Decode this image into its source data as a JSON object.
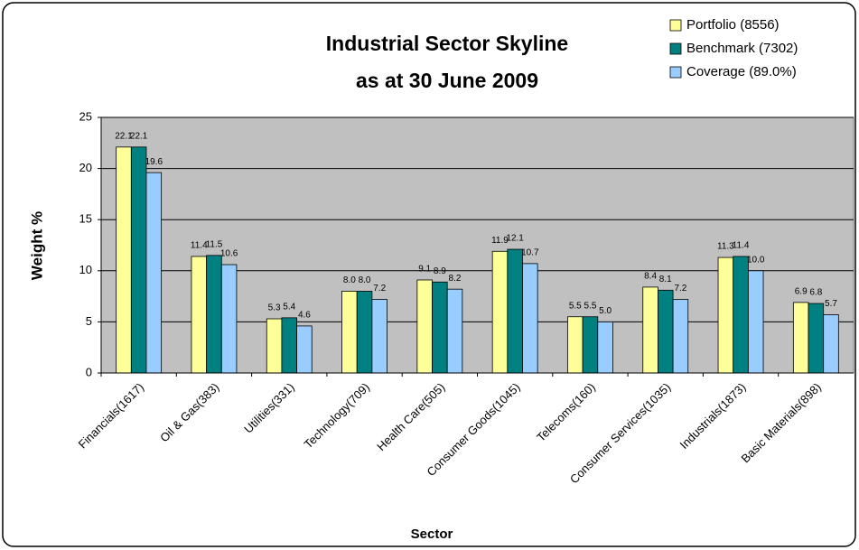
{
  "chart_data": {
    "type": "bar",
    "title": "Industrial Sector Skyline",
    "subtitle": "as at 30 June 2009",
    "x_label": "Sector",
    "y_label": "Weight %",
    "categories": [
      "Financials(1617)",
      "Oil & Gas(383)",
      "Utilities(331)",
      "Technology(709)",
      "Health Care(505)",
      "Consumer Goods(1045)",
      "Telecoms(160)",
      "Consumer Services(1035)",
      "Industrials(1873)",
      "Basic Materials(898)"
    ],
    "series": [
      {
        "name": "Portfolio (8556)",
        "color": "#ffff99",
        "values": [
          22.1,
          11.4,
          5.3,
          8.0,
          9.1,
          11.9,
          5.5,
          8.4,
          11.3,
          6.9
        ],
        "value_labels": [
          "22.1",
          "11.4",
          "5.3",
          "8.0",
          "9.1",
          "11.9",
          "5.5",
          "8.4",
          "11.3",
          "6.9"
        ]
      },
      {
        "name": "Benchmark (7302)",
        "color": "#008080",
        "values": [
          22.1,
          11.5,
          5.4,
          8.0,
          8.9,
          12.1,
          5.5,
          8.1,
          11.4,
          6.8
        ],
        "value_labels": [
          "22.1",
          "11.5",
          "5.4",
          "8.0",
          "8.9",
          "12.1",
          "5.5",
          "8.1",
          "11.4",
          "6.8"
        ]
      },
      {
        "name": "Coverage (89.0%)",
        "color": "#99ccff",
        "values": [
          19.6,
          10.6,
          4.6,
          7.2,
          8.2,
          10.7,
          5.0,
          7.2,
          10.0,
          5.7
        ],
        "value_labels": [
          "19.6",
          "10.6",
          "4.6",
          "7.2",
          "8.2",
          "10.7",
          "5.0",
          "7.2",
          "10.0",
          "5.7"
        ]
      }
    ],
    "ylim": [
      0,
      25
    ],
    "yticks": [
      0,
      5,
      10,
      15,
      20,
      25
    ],
    "grid": true,
    "plot_background": "#c0c0c0",
    "legend": "upper right"
  }
}
